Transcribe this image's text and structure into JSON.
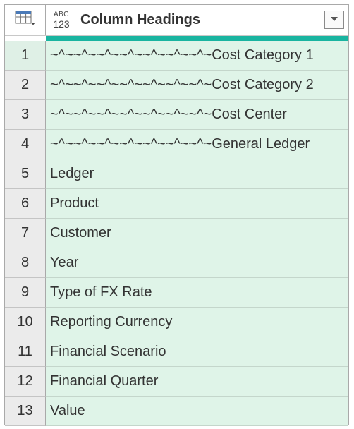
{
  "header": {
    "type_icon": {
      "top": "ABC",
      "bottom": "123"
    },
    "column_title": "Column Headings"
  },
  "rows": [
    {
      "num": "1",
      "value": "~^~~^~~^~~^~~^~~^~~^~Cost Category 1"
    },
    {
      "num": "2",
      "value": "~^~~^~~^~~^~~^~~^~~^~Cost Category 2"
    },
    {
      "num": "3",
      "value": "~^~~^~~^~~^~~^~~^~~^~Cost Center"
    },
    {
      "num": "4",
      "value": "~^~~^~~^~~^~~^~~^~~^~General Ledger"
    },
    {
      "num": "5",
      "value": "Ledger"
    },
    {
      "num": "6",
      "value": "Product"
    },
    {
      "num": "7",
      "value": "Customer"
    },
    {
      "num": "8",
      "value": "Year"
    },
    {
      "num": "9",
      "value": "Type of FX Rate"
    },
    {
      "num": "10",
      "value": "Reporting Currency"
    },
    {
      "num": "11",
      "value": "Financial Scenario"
    },
    {
      "num": "12",
      "value": "Financial Quarter"
    },
    {
      "num": "13",
      "value": "Value"
    }
  ],
  "colors": {
    "quality_bar": "#19b4a0",
    "cell_background": "#dff4e8",
    "row_number_background": "#ebebeb"
  }
}
